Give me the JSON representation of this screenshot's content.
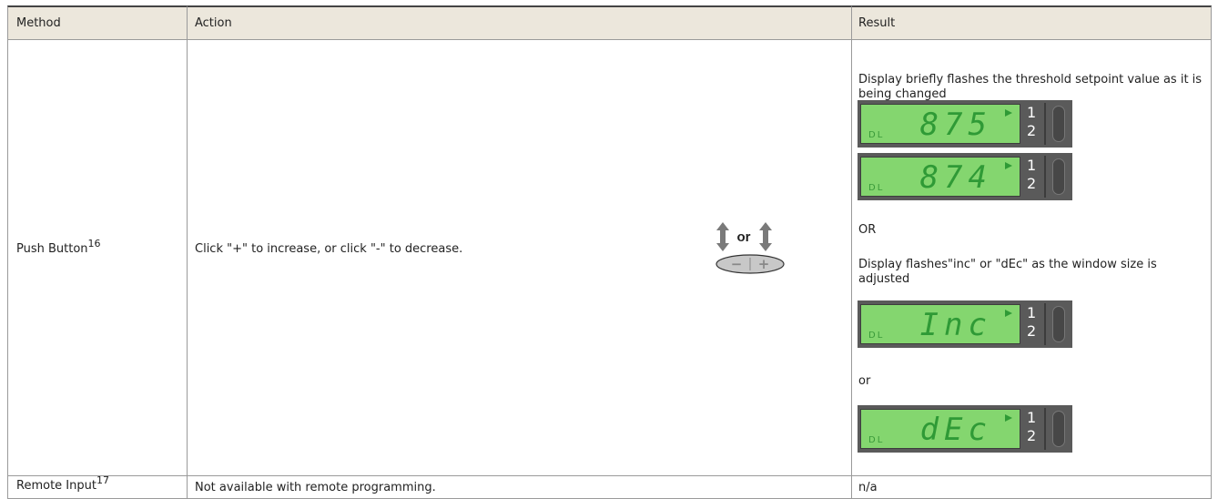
{
  "table": {
    "headers": [
      "Method",
      "Action",
      "Result"
    ],
    "rows": [
      {
        "method": "Push Button",
        "method_note": "16",
        "action": "Click \"+\" to increase, or click \"-\" to decrease.",
        "action_figure": {
          "label": "or",
          "minus": "−",
          "plus": "+"
        },
        "result": [
          {
            "text": "Display briefly flashes the threshold setpoint value as it is being changed"
          },
          {
            "display": "875",
            "mode": "DL",
            "channels": [
              "1",
              "2"
            ]
          },
          {
            "display": "874",
            "mode": "DL",
            "channels": [
              "1",
              "2"
            ]
          },
          {
            "text": "OR"
          },
          {
            "text": "Display flashes\"inc\" or \"dEc\" as the window size is adjusted"
          },
          {
            "display": "Inc",
            "mode": "DL",
            "channels": [
              "1",
              "2"
            ]
          },
          {
            "text": "or"
          },
          {
            "display": "dEc",
            "mode": "DL",
            "channels": [
              "1",
              "2"
            ]
          }
        ]
      },
      {
        "method": "Remote Input",
        "method_note": "17",
        "action": "Not available with remote programming.",
        "result": [
          {
            "text": "n/a"
          }
        ]
      }
    ]
  }
}
